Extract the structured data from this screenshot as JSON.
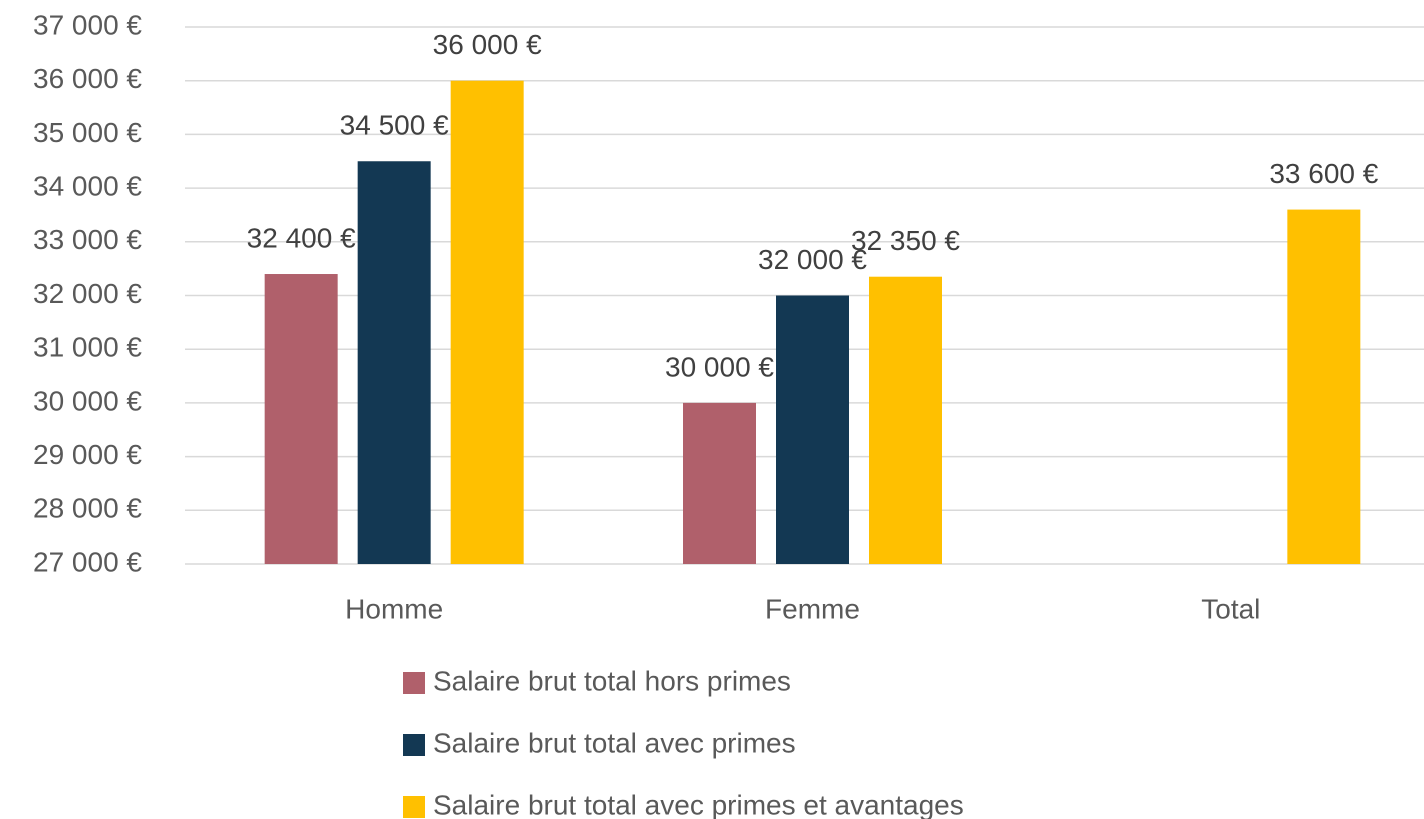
{
  "chart_data": {
    "type": "bar",
    "categories": [
      "Homme",
      "Femme",
      "Total"
    ],
    "series": [
      {
        "name": "Salaire brut total hors primes",
        "color": "#b0606b",
        "values": [
          32400,
          30000,
          null
        ],
        "value_labels": [
          "32 400 €",
          "30 000 €",
          null
        ]
      },
      {
        "name": "Salaire brut total avec primes",
        "color": "#133853",
        "values": [
          34500,
          32000,
          null
        ],
        "value_labels": [
          "34 500 €",
          "32 000 €",
          null
        ]
      },
      {
        "name": "Salaire brut total avec primes et avantages",
        "color": "#ffc000",
        "values": [
          36000,
          32350,
          33600
        ],
        "value_labels": [
          "36 000 €",
          "32 350 €",
          "33 600 €"
        ]
      }
    ],
    "ylim": [
      27000,
      37000
    ],
    "yticks": [
      {
        "value": 27000,
        "label": "27 000 €"
      },
      {
        "value": 28000,
        "label": "28 000 €"
      },
      {
        "value": 29000,
        "label": "29 000 €"
      },
      {
        "value": 30000,
        "label": "30 000 €"
      },
      {
        "value": 31000,
        "label": "31 000 €"
      },
      {
        "value": 32000,
        "label": "32 000 €"
      },
      {
        "value": 33000,
        "label": "33 000 €"
      },
      {
        "value": 34000,
        "label": "34 000 €"
      },
      {
        "value": 35000,
        "label": "35 000 €"
      },
      {
        "value": 36000,
        "label": "36 000 €"
      },
      {
        "value": 37000,
        "label": "37 000 €"
      }
    ],
    "grid": true
  }
}
